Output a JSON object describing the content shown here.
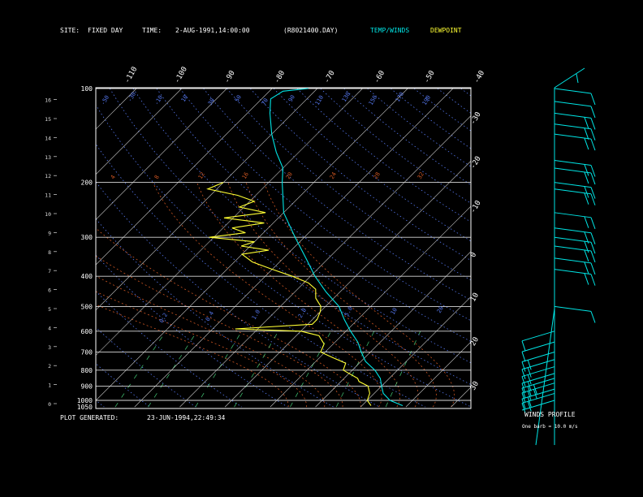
{
  "header": {
    "site_label": "SITE:",
    "site_value": "FIXED  DAY",
    "time_label": "TIME:",
    "time_value": "2-AUG-1991,14:00:00",
    "file_value": "(R8021400.DAY)",
    "legend_temp": "TEMP/WINDS",
    "legend_dew": "DEWPOINT"
  },
  "footer": {
    "generated_label": "PLOT GENERATED:",
    "generated_value": "23-JUN-1994,22:49:34",
    "wind_title": "WINDS PROFILE",
    "wind_note": "One barb = 10.0 m/s"
  },
  "colors": {
    "background": "#000000",
    "temp": "#00e5e5",
    "dewpoint": "#ffff33",
    "isotherm": "#c8c8c8",
    "isobar": "#d8d8d8",
    "dry_adiabat": "#5577ee",
    "moist_adiabat": "#cc5522",
    "mixing_ratio": "#44cc77",
    "frame": "#ffffff"
  },
  "chart_data": {
    "type": "line",
    "subtype": "skew-t log-p diagram",
    "pressure_ticks": [
      "100",
      "200",
      "300",
      "400",
      "500",
      "600",
      "700",
      "800",
      "900",
      "1000",
      "1050"
    ],
    "height_ticks": [
      "0",
      "1",
      "2",
      "3",
      "4",
      "5",
      "6",
      "7",
      "8",
      "9",
      "10",
      "11",
      "12",
      "13",
      "14",
      "15",
      "16"
    ],
    "isotherm_labels_top": [
      "-110",
      "-100",
      "-90",
      "-80",
      "-70",
      "-60",
      "-50",
      "-40"
    ],
    "isotherm_labels_right": [
      "-30",
      "-20",
      "-10",
      "0",
      "10",
      "20",
      "30"
    ],
    "dry_adiabat_labels": [
      "-50",
      "-30",
      "-10",
      "10",
      "30",
      "50",
      "70",
      "90",
      "110",
      "130",
      "150",
      "170",
      "190"
    ],
    "moist_adiabat_labels": [
      "4",
      "8",
      "12",
      "16",
      "20",
      "24",
      "28",
      "32"
    ],
    "mixing_ratio_labels": [
      "0.2",
      "0.4",
      "1.0",
      "2.0",
      "5.0",
      "10",
      "20"
    ],
    "ylim_pressure_hpa": [
      100,
      1050
    ],
    "ylim_height_km": [
      0,
      16
    ],
    "xlim_temp_c_at_1050": [
      -45,
      38
    ],
    "series": [
      {
        "name": "TEMP/WINDS",
        "pressure_hpa": [
          1040,
          1000,
          950,
          900,
          850,
          800,
          750,
          700,
          650,
          600,
          550,
          500,
          450,
          400,
          350,
          300,
          250,
          220,
          200,
          180,
          160,
          140,
          120,
          108,
          102,
          100
        ],
        "temperature_c": [
          29,
          25,
          22,
          20,
          18,
          15,
          11,
          8,
          5,
          1,
          -3,
          -7,
          -13,
          -19,
          -25,
          -32,
          -40,
          -44,
          -47,
          -50,
          -55,
          -60,
          -65,
          -68,
          -67,
          -62
        ]
      },
      {
        "name": "DEWPOINT",
        "pressure_hpa": [
          1040,
          1000,
          950,
          900,
          870,
          850,
          800,
          760,
          730,
          700,
          660,
          620,
          600,
          590,
          570,
          550,
          520,
          500,
          470,
          440,
          420,
          400,
          380,
          360,
          340,
          330,
          320,
          310,
          300,
          290,
          280,
          270,
          260,
          250,
          240,
          230,
          220,
          210,
          200
        ],
        "dewpoint_c": [
          22,
          20,
          19,
          17,
          14,
          13,
          8,
          7,
          3,
          -1,
          -2,
          -5,
          -10,
          -25,
          -9,
          -9,
          -10,
          -11,
          -14,
          -16,
          -19,
          -24,
          -30,
          -36,
          -40,
          -35,
          -42,
          -40,
          -51,
          -44,
          -48,
          -42,
          -52,
          -44,
          -51,
          -49,
          -54,
          -62,
          -60
        ]
      }
    ],
    "wind_profile": {
      "barb_units_m_s": 10.0,
      "levels": [
        {
          "pressure_hpa": 1000,
          "barbs": 0
        },
        {
          "pressure_hpa": 950,
          "barbs": 2
        },
        {
          "pressure_hpa": 920,
          "barbs": 2
        },
        {
          "pressure_hpa": 880,
          "barbs": 3
        },
        {
          "pressure_hpa": 850,
          "barbs": 3
        },
        {
          "pressure_hpa": 820,
          "barbs": 2
        },
        {
          "pressure_hpa": 780,
          "barbs": 2
        },
        {
          "pressure_hpa": 740,
          "barbs": 2
        },
        {
          "pressure_hpa": 700,
          "barbs": 2
        },
        {
          "pressure_hpa": 650,
          "barbs": 1
        },
        {
          "pressure_hpa": 600,
          "barbs": 1
        },
        {
          "pressure_hpa": 500,
          "barbs": 1
        },
        {
          "pressure_hpa": 380,
          "barbs": 2
        },
        {
          "pressure_hpa": 350,
          "barbs": 2
        },
        {
          "pressure_hpa": 320,
          "barbs": 2
        },
        {
          "pressure_hpa": 300,
          "barbs": 2
        },
        {
          "pressure_hpa": 280,
          "barbs": 2
        },
        {
          "pressure_hpa": 250,
          "barbs": 2
        },
        {
          "pressure_hpa": 210,
          "barbs": 2
        },
        {
          "pressure_hpa": 200,
          "barbs": 2
        },
        {
          "pressure_hpa": 180,
          "barbs": 2
        },
        {
          "pressure_hpa": 170,
          "barbs": 2
        },
        {
          "pressure_hpa": 140,
          "barbs": 2
        },
        {
          "pressure_hpa": 130,
          "barbs": 2
        },
        {
          "pressure_hpa": 120,
          "barbs": 2
        },
        {
          "pressure_hpa": 110,
          "barbs": 1
        },
        {
          "pressure_hpa": 100,
          "barbs": 1
        }
      ]
    }
  }
}
